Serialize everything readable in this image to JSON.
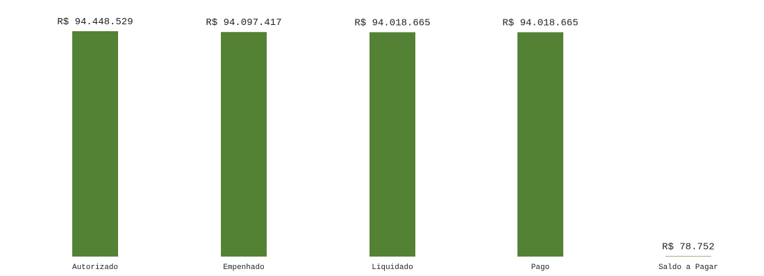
{
  "chart_data": {
    "type": "bar",
    "categories": [
      "Autorizado",
      "Empenhado",
      "Liquidado",
      "Pago",
      "Saldo a Pagar"
    ],
    "values": [
      94448529,
      94097417,
      94018665,
      94018665,
      78752
    ],
    "data_labels": [
      "R$ 94.448.529",
      "R$ 94.097.417",
      "R$ 94.018.665",
      "R$ 94.018.665",
      "R$ 78.752"
    ],
    "title": "",
    "xlabel": "",
    "ylabel": "",
    "ylim": [
      0,
      94448529
    ],
    "grid": false,
    "bar_color": "#548235"
  }
}
